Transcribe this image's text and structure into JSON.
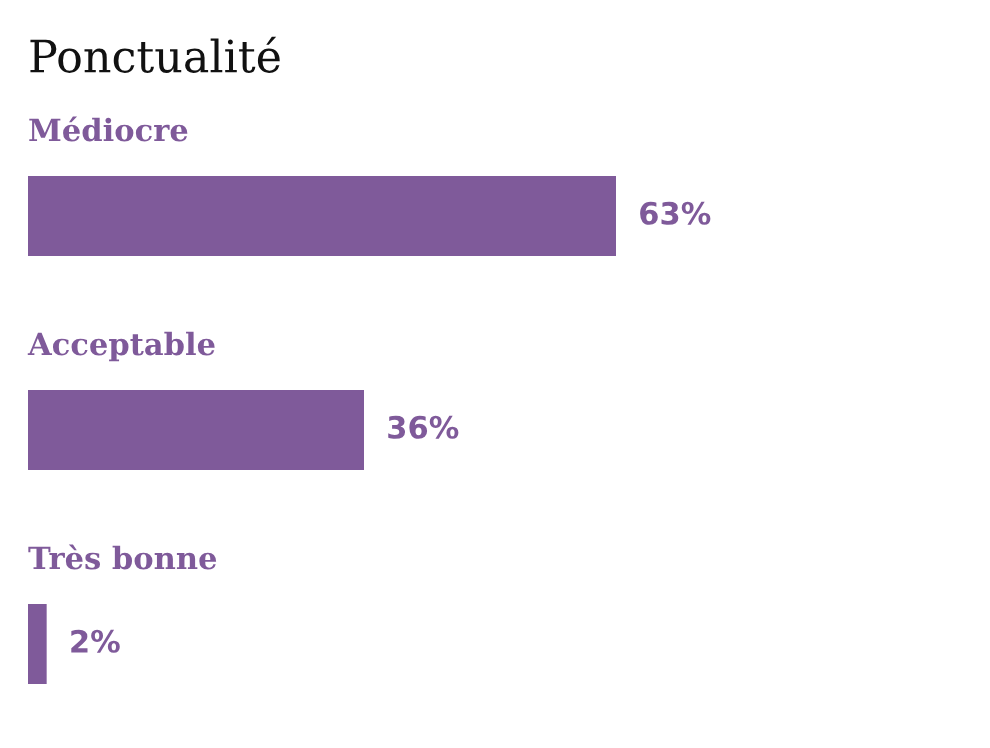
{
  "chart_data": {
    "type": "bar",
    "orientation": "horizontal",
    "title": "Ponctualité",
    "categories": [
      "Médiocre",
      "Acceptable",
      "Très bonne"
    ],
    "values": [
      63,
      36,
      2
    ],
    "value_labels": [
      "63%",
      "36%",
      "2%"
    ],
    "color": "#7f5a9a"
  }
}
